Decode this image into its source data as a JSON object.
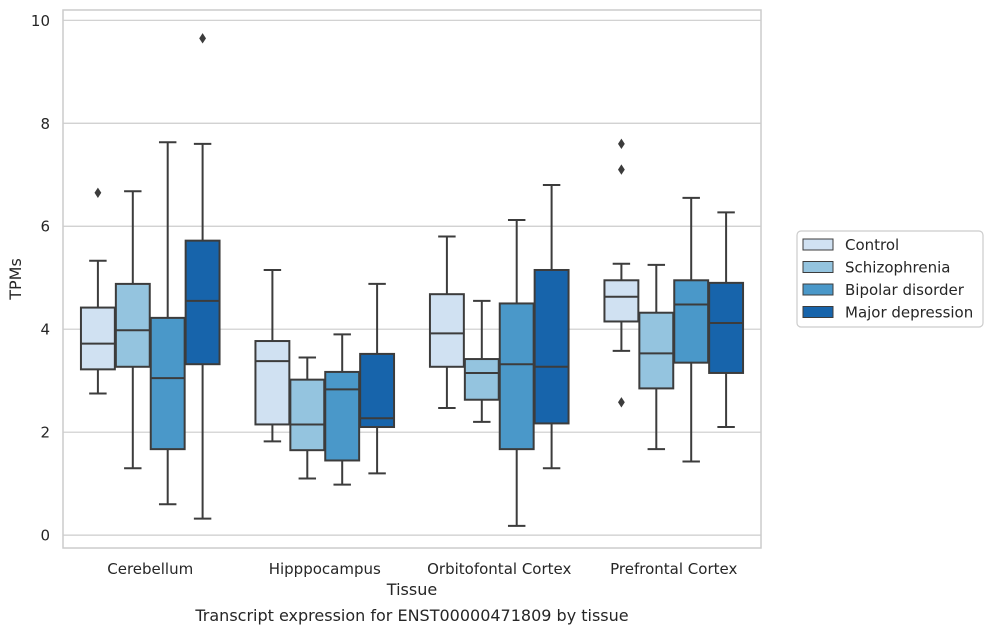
{
  "chart_data": {
    "type": "box",
    "title": "Transcript expression for ENST00000471809 by tissue",
    "xlabel": "Tissue",
    "ylabel": "TPMs",
    "ylim": [
      -0.25,
      10.2
    ],
    "yticks": [
      0,
      2,
      4,
      6,
      8,
      10
    ],
    "grid": "y",
    "legend_position": "outside-right",
    "categories": [
      "Cerebellum",
      "Hipppocampus",
      "Orbitofontal Cortex",
      "Prefrontal Cortex"
    ],
    "series": [
      {
        "name": "Control",
        "color": "#d0e1f2",
        "boxes": [
          {
            "whislo": 2.75,
            "q1": 3.22,
            "med": 3.72,
            "q3": 4.42,
            "whishi": 5.33,
            "fliers": [
              6.65
            ]
          },
          {
            "whislo": 1.82,
            "q1": 2.15,
            "med": 3.38,
            "q3": 3.77,
            "whishi": 5.15,
            "fliers": []
          },
          {
            "whislo": 2.47,
            "q1": 3.27,
            "med": 3.92,
            "q3": 4.68,
            "whishi": 5.8,
            "fliers": []
          },
          {
            "whislo": 3.58,
            "q1": 4.15,
            "med": 4.63,
            "q3": 4.95,
            "whishi": 5.27,
            "fliers": [
              7.6,
              7.1,
              2.58
            ]
          }
        ]
      },
      {
        "name": "Schizophrenia",
        "color": "#94c4df",
        "boxes": [
          {
            "whislo": 1.3,
            "q1": 3.27,
            "med": 3.98,
            "q3": 4.88,
            "whishi": 6.68,
            "fliers": []
          },
          {
            "whislo": 1.1,
            "q1": 1.65,
            "med": 2.15,
            "q3": 3.02,
            "whishi": 3.45,
            "fliers": []
          },
          {
            "whislo": 2.2,
            "q1": 2.63,
            "med": 3.15,
            "q3": 3.42,
            "whishi": 4.55,
            "fliers": []
          },
          {
            "whislo": 1.67,
            "q1": 2.85,
            "med": 3.53,
            "q3": 4.32,
            "whishi": 5.25,
            "fliers": []
          }
        ]
      },
      {
        "name": "Bipolar disorder",
        "color": "#4a98c9",
        "boxes": [
          {
            "whislo": 0.6,
            "q1": 1.67,
            "med": 3.05,
            "q3": 4.22,
            "whishi": 7.63,
            "fliers": []
          },
          {
            "whislo": 0.98,
            "q1": 1.45,
            "med": 2.83,
            "q3": 3.17,
            "whishi": 3.9,
            "fliers": []
          },
          {
            "whislo": 0.18,
            "q1": 1.67,
            "med": 3.32,
            "q3": 4.5,
            "whishi": 6.12,
            "fliers": []
          },
          {
            "whislo": 1.43,
            "q1": 3.35,
            "med": 4.48,
            "q3": 4.95,
            "whishi": 6.55,
            "fliers": []
          }
        ]
      },
      {
        "name": "Major depression",
        "color": "#1764ab",
        "boxes": [
          {
            "whislo": 0.32,
            "q1": 3.32,
            "med": 4.55,
            "q3": 5.72,
            "whishi": 7.6,
            "fliers": [
              9.65
            ]
          },
          {
            "whislo": 1.2,
            "q1": 2.1,
            "med": 2.27,
            "q3": 3.52,
            "whishi": 4.88,
            "fliers": []
          },
          {
            "whislo": 1.3,
            "q1": 2.17,
            "med": 3.27,
            "q3": 5.15,
            "whishi": 6.8,
            "fliers": []
          },
          {
            "whislo": 2.1,
            "q1": 3.15,
            "med": 4.12,
            "q3": 4.9,
            "whishi": 6.27,
            "fliers": []
          }
        ]
      }
    ]
  }
}
